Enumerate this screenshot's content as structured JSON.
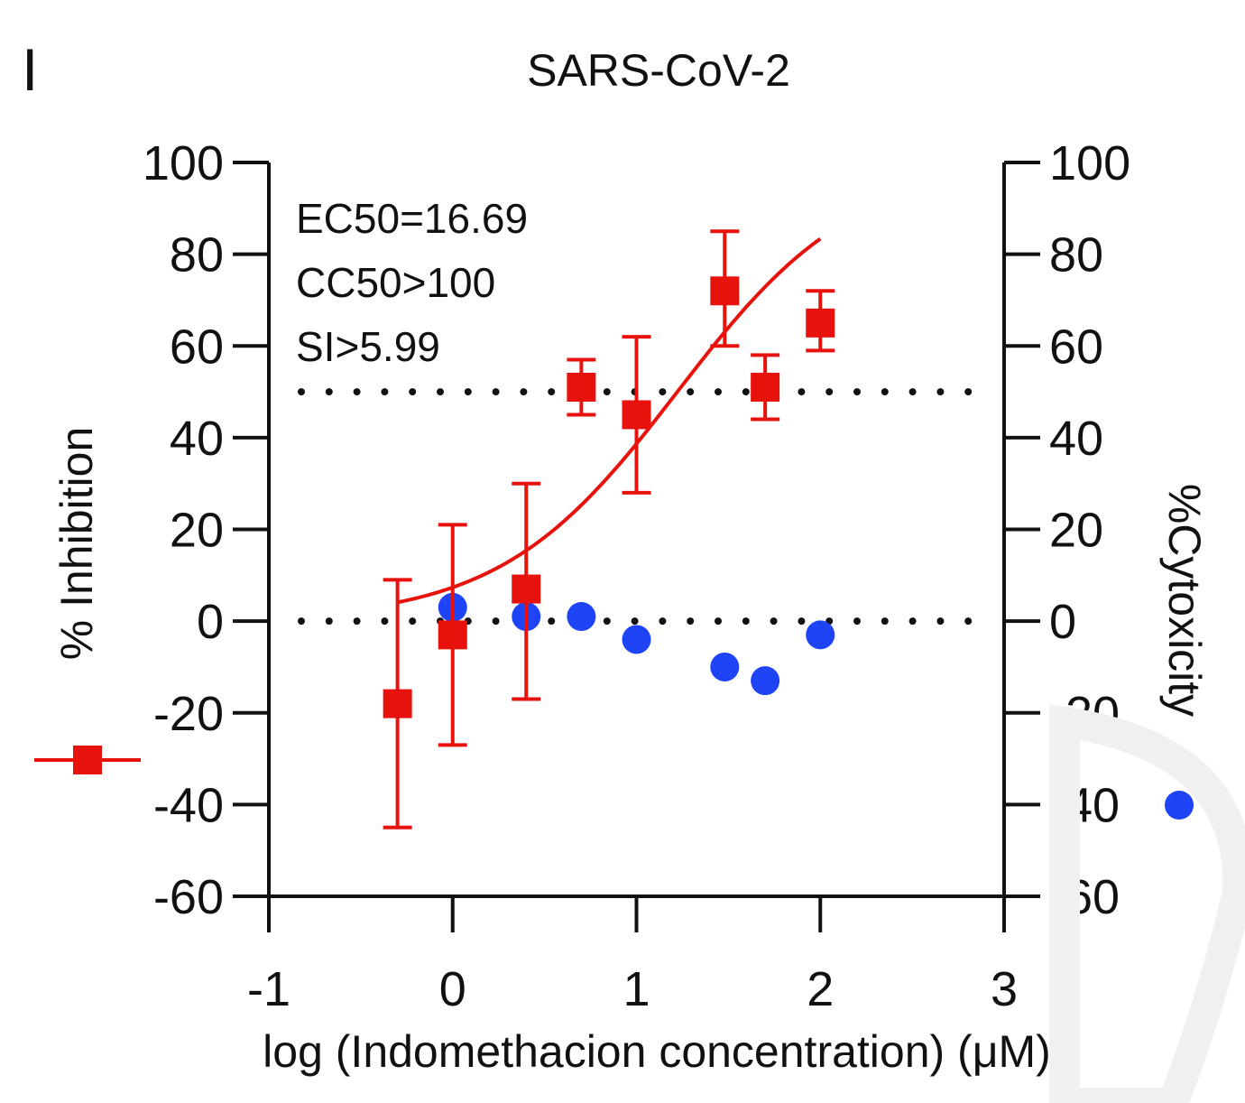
{
  "panel_label": "I",
  "chart_data": {
    "type": "scatter",
    "title": "SARS-CoV-2",
    "xlabel": "log (Indomethacion concentration) (μM)",
    "ylabel_left": "% Inhibition",
    "ylabel_right": "%Cytoxicity",
    "xlim": [
      -1,
      3
    ],
    "ylim": [
      -60,
      100
    ],
    "x_ticks": [
      "-1",
      "0",
      "1",
      "2",
      "3"
    ],
    "y_ticks": [
      "-60",
      "-40",
      "-20",
      "0",
      "20",
      "40",
      "60",
      "80",
      "100"
    ],
    "annotations": [
      "EC50=16.69",
      "CC50>100",
      "SI>5.99"
    ],
    "reference_lines": [
      50,
      0
    ],
    "grid": false,
    "series": [
      {
        "marker": "square",
        "color": "#e8120c",
        "axis": "left",
        "x": [
          -0.3,
          0,
          0.4,
          0.7,
          1.0,
          1.48,
          1.7,
          2.0
        ],
        "y": [
          -18,
          -3,
          7,
          51,
          45,
          72,
          51,
          65
        ],
        "error_low": [
          -45,
          -27,
          -17,
          45,
          28,
          60,
          44,
          59
        ],
        "error_high": [
          9,
          21,
          30,
          57,
          62,
          85,
          58,
          72
        ],
        "fit_curve": {
          "from": -0.3,
          "to": 2.0,
          "bottom": 0,
          "top": 100,
          "log_ec50": 1.2225,
          "hill_slope": 0.9
        }
      },
      {
        "marker": "circle",
        "color": "#1f44f5",
        "axis": "right",
        "x": [
          0,
          0.4,
          0.7,
          1.0,
          1.48,
          1.7,
          2.0
        ],
        "y": [
          3,
          1,
          1,
          -4,
          -10,
          -13,
          -3
        ]
      }
    ]
  }
}
